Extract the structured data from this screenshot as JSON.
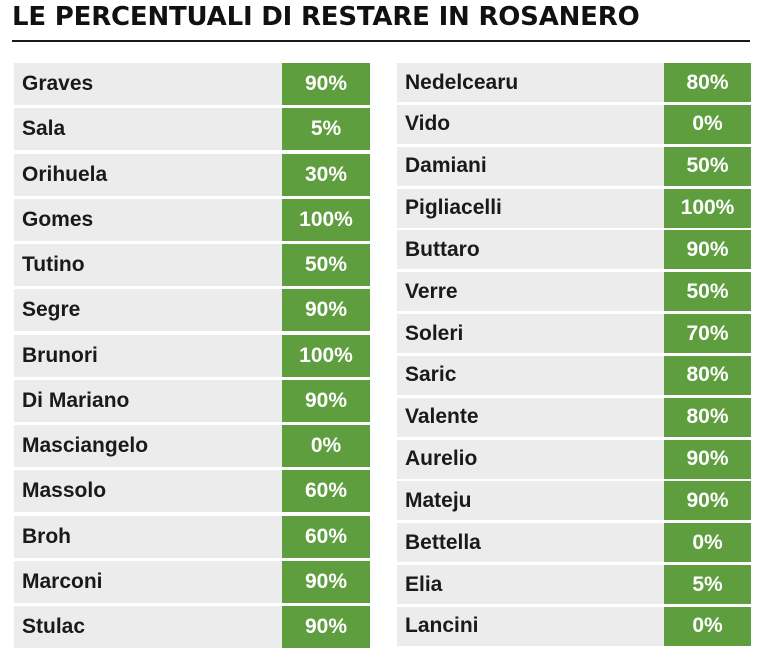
{
  "title": "LE PERCENTUALI DI RESTARE IN ROSANERO",
  "colors": {
    "accent_green": "#5e9e3e",
    "row_background": "#ececec",
    "text": "#1a1a1a"
  },
  "left_column": [
    {
      "name": "Graves",
      "value": "90%"
    },
    {
      "name": "Sala",
      "value": "5%"
    },
    {
      "name": "Orihuela",
      "value": "30%"
    },
    {
      "name": "Gomes",
      "value": "100%"
    },
    {
      "name": "Tutino",
      "value": "50%"
    },
    {
      "name": "Segre",
      "value": "90%"
    },
    {
      "name": "Brunori",
      "value": "100%"
    },
    {
      "name": "Di Mariano",
      "value": "90%"
    },
    {
      "name": "Masciangelo",
      "value": "0%"
    },
    {
      "name": "Massolo",
      "value": "60%"
    },
    {
      "name": "Broh",
      "value": "60%"
    },
    {
      "name": "Marconi",
      "value": "90%"
    },
    {
      "name": "Stulac",
      "value": "90%"
    }
  ],
  "right_column": [
    {
      "name": "Nedelcearu",
      "value": "80%"
    },
    {
      "name": "Vido",
      "value": "0%"
    },
    {
      "name": "Damiani",
      "value": "50%"
    },
    {
      "name": "Pigliacelli",
      "value": "100%"
    },
    {
      "name": "Buttaro",
      "value": "90%"
    },
    {
      "name": "Verre",
      "value": "50%"
    },
    {
      "name": "Soleri",
      "value": "70%"
    },
    {
      "name": "Saric",
      "value": "80%"
    },
    {
      "name": "Valente",
      "value": "80%"
    },
    {
      "name": "Aurelio",
      "value": "90%"
    },
    {
      "name": "Mateju",
      "value": "90%"
    },
    {
      "name": "Bettella",
      "value": "0%"
    },
    {
      "name": "Elia",
      "value": "5%"
    },
    {
      "name": "Lancini",
      "value": "0%"
    }
  ]
}
